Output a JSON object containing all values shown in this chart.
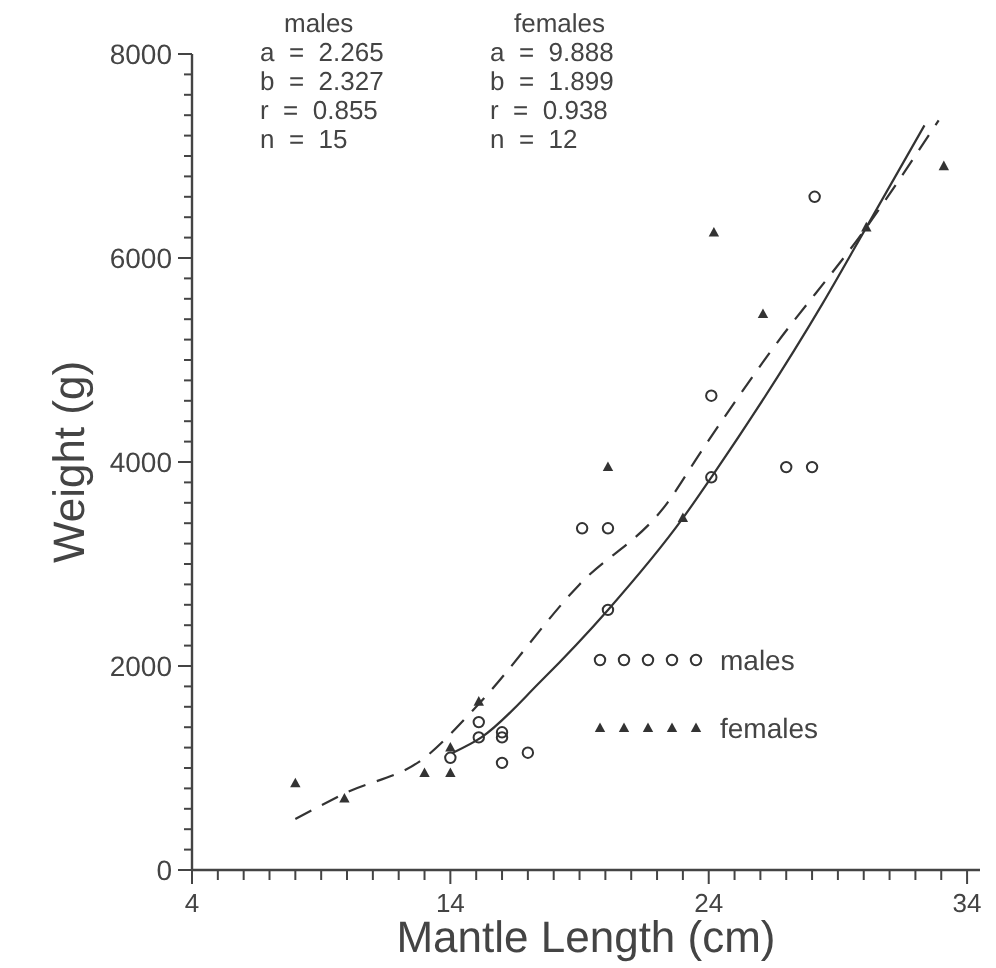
{
  "chart_data": {
    "type": "scatter",
    "xlabel": "Mantle Length (cm)",
    "ylabel": "Weight (g)",
    "annotations": [
      "males\na  =  2.265\nb  =  2.327\nr  =  0.855\nn  =  15",
      "females\na  =  9.888\nb  =  1.899\nr  =  0.938\nn  =  12"
    ],
    "series": [
      {
        "name": "males",
        "marker": "circle",
        "color": "#333333",
        "x": [
          14,
          15.1,
          15.1,
          16,
          16,
          16,
          17,
          19.1,
          20.1,
          20.1,
          24.1,
          24.1,
          27,
          28,
          28.1
        ],
        "values": [
          1100,
          1300,
          1450,
          1350,
          1300,
          1050,
          1150,
          3350,
          3350,
          2550,
          4650,
          3850,
          3950,
          3950,
          6600
        ]
      },
      {
        "name": "females",
        "marker": "triangle",
        "color": "#333333",
        "x": [
          8,
          9.9,
          13,
          14,
          14,
          15.1,
          20.1,
          23,
          24.2,
          26.1,
          30.1,
          33.1
        ],
        "values": [
          850,
          700,
          950,
          1200,
          950,
          1650,
          3950,
          3450,
          6250,
          5450,
          6300,
          6900
        ]
      },
      {
        "type": "line",
        "marker": "none",
        "line_style": "solid",
        "color": "#333333",
        "x": [
          14.1,
          15.2,
          17.5,
          20.1,
          23,
          24.1,
          28.4,
          30.1,
          32.35
        ],
        "values": [
          1150,
          1300,
          1850,
          2550,
          3450,
          3850,
          5550,
          6300,
          7300
        ]
      },
      {
        "type": "line",
        "marker": "none",
        "line_style": "dashed",
        "color": "#333333",
        "x": [
          8,
          9.9,
          13,
          15,
          19,
          22.4,
          23.7,
          26.3,
          30.1,
          32.9
        ],
        "values": [
          500,
          750,
          1100,
          1600,
          2800,
          3600,
          4100,
          5050,
          6300,
          7350
        ]
      }
    ],
    "xlim": [
      4,
      34.5
    ],
    "ylim": [
      0,
      8000
    ],
    "xticks": [
      4,
      {
        "value": 5,
        "label": null
      },
      {
        "value": 6,
        "label": null
      },
      {
        "value": 7,
        "label": null
      },
      {
        "value": 8,
        "label": null
      },
      {
        "value": 9,
        "label": null
      },
      {
        "value": 10,
        "label": null
      },
      {
        "value": 11,
        "label": null
      },
      {
        "value": 12,
        "label": null
      },
      {
        "value": 13,
        "label": null
      },
      14,
      {
        "value": 15,
        "label": null
      },
      {
        "value": 16,
        "label": null
      },
      {
        "value": 17,
        "label": null
      },
      {
        "value": 18,
        "label": null
      },
      {
        "value": 19,
        "label": null
      },
      {
        "value": 20,
        "label": null
      },
      {
        "value": 21,
        "label": null
      },
      {
        "value": 22,
        "label": null
      },
      {
        "value": 23,
        "label": null
      },
      24,
      {
        "value": 25,
        "label": null
      },
      {
        "value": 26,
        "label": null
      },
      {
        "value": 27,
        "label": null
      },
      {
        "value": 28,
        "label": null
      },
      {
        "value": 29,
        "label": null
      },
      {
        "value": 30,
        "label": null
      },
      {
        "value": 31,
        "label": null
      },
      {
        "value": 32,
        "label": null
      },
      {
        "value": 33,
        "label": null
      },
      34
    ],
    "yticks": [
      0,
      {
        "value": 200,
        "label": null
      },
      {
        "value": 400,
        "label": null
      },
      {
        "value": 600,
        "label": null
      },
      {
        "value": 800,
        "label": null
      },
      {
        "value": 1000,
        "label": null
      },
      {
        "value": 1200,
        "label": null
      },
      {
        "value": 1400,
        "label": null
      },
      {
        "value": 1600,
        "label": null
      },
      {
        "value": 1800,
        "label": null
      },
      2000,
      {
        "value": 2200,
        "label": null
      },
      {
        "value": 2400,
        "label": null
      },
      {
        "value": 2600,
        "label": null
      },
      {
        "value": 2800,
        "label": null
      },
      {
        "value": 3000,
        "label": null
      },
      {
        "value": 3200,
        "label": null
      },
      {
        "value": 3400,
        "label": null
      },
      {
        "value": 3600,
        "label": null
      },
      {
        "value": 3800,
        "label": null
      },
      4000,
      {
        "value": 4200,
        "label": null
      },
      {
        "value": 4400,
        "label": null
      },
      {
        "value": 4600,
        "label": null
      },
      {
        "value": 4800,
        "label": null
      },
      {
        "value": 5000,
        "label": null
      },
      {
        "value": 5200,
        "label": null
      },
      {
        "value": 5400,
        "label": null
      },
      {
        "value": 5600,
        "label": null
      },
      {
        "value": 5800,
        "label": null
      },
      6000,
      {
        "value": 6200,
        "label": null
      },
      {
        "value": 6400,
        "label": null
      },
      {
        "value": 6600,
        "label": null
      },
      {
        "value": 6800,
        "label": null
      },
      {
        "value": 7000,
        "label": null
      },
      {
        "value": 7200,
        "label": null
      },
      {
        "value": 7400,
        "label": null
      },
      {
        "value": 7600,
        "label": null
      },
      {
        "value": 7800,
        "label": null
      },
      8000
    ],
    "grid": false,
    "legend": "bottom right"
  }
}
